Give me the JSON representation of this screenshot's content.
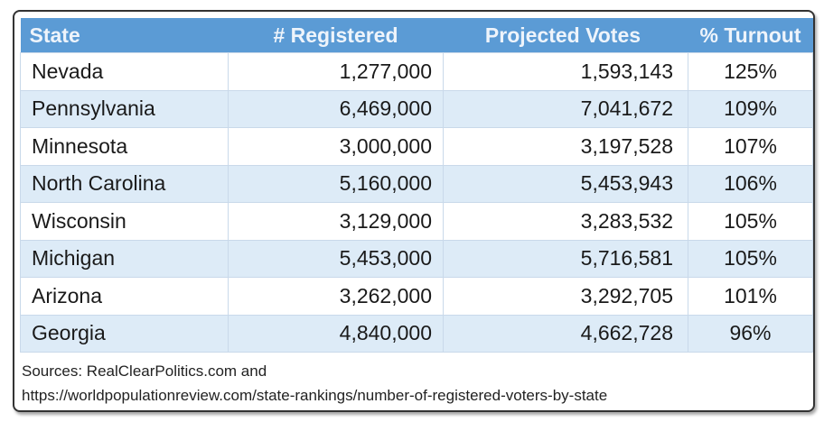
{
  "table": {
    "headers": [
      "State",
      "# Registered",
      "Projected Votes",
      "% Turnout"
    ],
    "rows": [
      [
        "Nevada",
        "1,277,000",
        "1,593,143",
        "125%"
      ],
      [
        "Pennsylvania",
        "6,469,000",
        "7,041,672",
        "109%"
      ],
      [
        "Minnesota",
        "3,000,000",
        "3,197,528",
        "107%"
      ],
      [
        "North Carolina",
        "5,160,000",
        "5,453,943",
        "106%"
      ],
      [
        "Wisconsin",
        "3,129,000",
        "3,283,532",
        "105%"
      ],
      [
        "Michigan",
        "5,453,000",
        "5,716,581",
        "105%"
      ],
      [
        "Arizona",
        "3,262,000",
        "3,292,705",
        "101%"
      ],
      [
        "Georgia",
        "4,840,000",
        "4,662,728",
        "96%"
      ]
    ]
  },
  "sources": {
    "line1": "Sources: RealClearPolitics.com and",
    "line2": "https://worldpopulationreview.com/state-rankings/number-of-registered-voters-by-state"
  },
  "colors": {
    "header": "#5b9bd5",
    "alt_row": "#ddebf7"
  }
}
